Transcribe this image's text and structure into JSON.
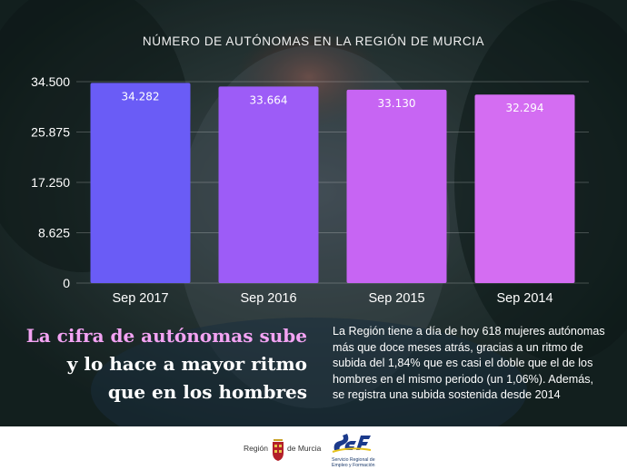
{
  "chart_data": {
    "type": "bar",
    "title": "NÚMERO DE AUTÓNOMAS EN LA REGIÓN DE MURCIA",
    "categories": [
      "Sep 2017",
      "Sep 2016",
      "Sep 2015",
      "Sep 2014"
    ],
    "values": [
      34282,
      33664,
      33130,
      32294
    ],
    "data_labels": [
      "34.282",
      "33.664",
      "33.130",
      "32.294"
    ],
    "yticks": [
      0,
      8625,
      17250,
      25875,
      34500
    ],
    "ytick_labels": [
      "0",
      "8.625",
      "17.250",
      "25.875",
      "34.500"
    ],
    "ylim": [
      0,
      34500
    ],
    "grid": true,
    "bar_colors": [
      "#6a5cf6",
      "#9d5cf7",
      "#c765f3",
      "#d46df2"
    ],
    "xlabel": "",
    "ylabel": ""
  },
  "headline": {
    "line1": "La cifra de autónomas sube",
    "line2": "y lo hace a mayor ritmo",
    "line3": "que en los hombres"
  },
  "body_text": "La Región tiene a día de hoy 618 mujeres autónomas más que doce meses atrás, gracias a un ritmo de subida del 1,84% que es casi el doble que el de los hombres en el mismo periodo (un 1,06%). Además, se registra una subida sostenida desde 2014",
  "footer": {
    "region_logo": {
      "left_text": "Región",
      "right_text": "de Murcia"
    },
    "sef_logo": {
      "line1": "Servicio Regional de",
      "line2": "Empleo y Formación"
    }
  }
}
